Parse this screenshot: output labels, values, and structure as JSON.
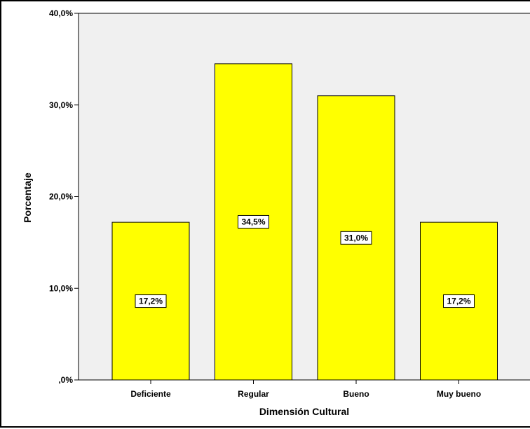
{
  "chart_data": {
    "type": "bar",
    "categories": [
      "Deficiente",
      "Regular",
      "Bueno",
      "Muy bueno"
    ],
    "values": [
      17.2,
      34.5,
      31.0,
      17.2
    ],
    "data_labels": [
      "17,2%",
      "34,5%",
      "31,0%",
      "17,2%"
    ],
    "xlabel": "Dimensión Cultural",
    "ylabel": "Porcentaje",
    "ylim": [
      0,
      40
    ],
    "yticks": [
      0,
      10,
      20,
      30,
      40
    ],
    "ytick_labels": [
      ",0%",
      "10,0%",
      "20,0%",
      "30,0%",
      "40,0%"
    ],
    "grid": false,
    "legend": "none",
    "colors": {
      "bar_fill": "#ffff00",
      "bar_stroke": "#000000",
      "plot_background": "#f0f0f0",
      "label_box_fill": "#ffffff"
    }
  }
}
